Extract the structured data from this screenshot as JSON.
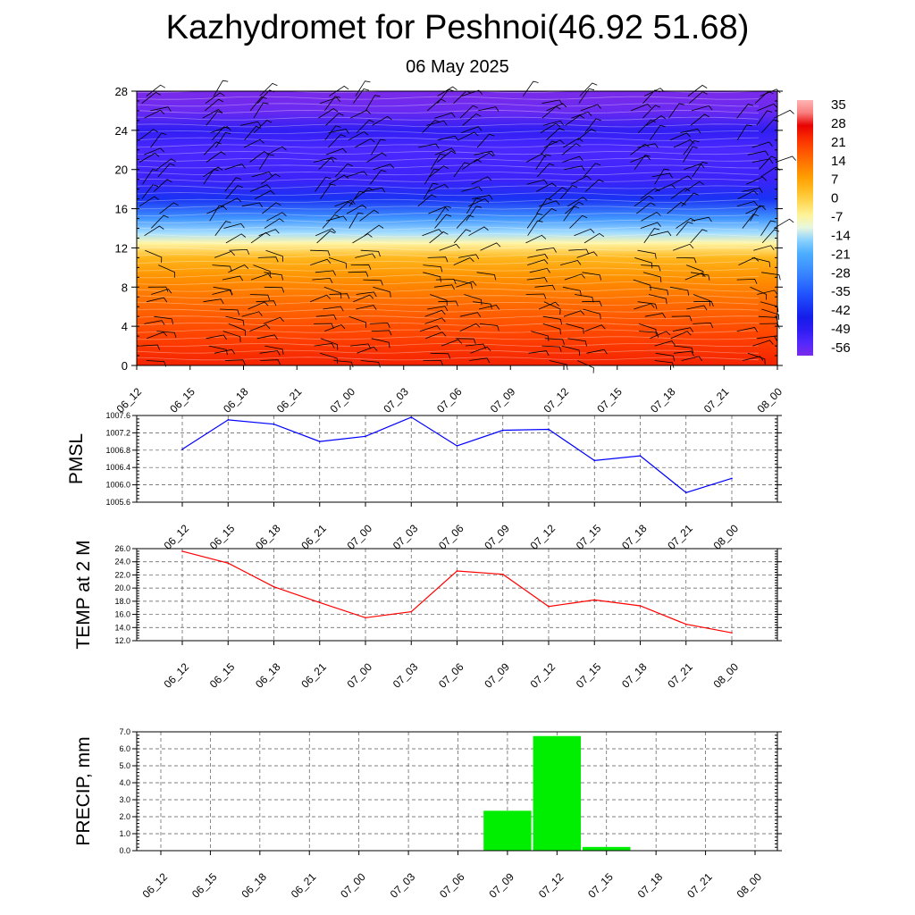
{
  "header": {
    "title": "Kazhydromet for Peshnoi(46.92 51.68)",
    "date": "06 May 2025"
  },
  "colors": {
    "pmsl_line": "#0000ff",
    "temp_line": "#ff0000",
    "precip_bar": "#00ee00",
    "axis": "#000000",
    "grid": "#555555"
  },
  "chart_data": [
    {
      "type": "heatmap",
      "title": "",
      "ylim": [
        0,
        28
      ],
      "yticks": [
        "0",
        "4",
        "8",
        "12",
        "16",
        "20",
        "24",
        "28"
      ],
      "categories": [
        "06_12",
        "06_15",
        "06_18",
        "06_21",
        "07_00",
        "07_03",
        "07_06",
        "07_09",
        "07_12",
        "07_15",
        "07_18",
        "07_21",
        "08_00"
      ],
      "colorbar_labels": [
        "35",
        "28",
        "21",
        "14",
        "7",
        "0",
        "-7",
        "-14",
        "-21",
        "-28",
        "-35",
        "-42",
        "-49",
        "-56"
      ],
      "profile": [
        {
          "level": 0,
          "value": 24
        },
        {
          "level": 3,
          "value": 20
        },
        {
          "level": 6,
          "value": 15
        },
        {
          "level": 9,
          "value": 9
        },
        {
          "level": 11,
          "value": 3
        },
        {
          "level": 12.5,
          "value": -9
        },
        {
          "level": 13.5,
          "value": -16
        },
        {
          "level": 15,
          "value": -28
        },
        {
          "level": 17,
          "value": -45
        },
        {
          "level": 19,
          "value": -56
        },
        {
          "level": 22,
          "value": -58
        },
        {
          "level": 24,
          "value": -54
        },
        {
          "level": 26,
          "value": -62
        },
        {
          "level": 28,
          "value": -64
        }
      ],
      "overlay": "wind barbs"
    },
    {
      "type": "line",
      "ylabel": "PMSL",
      "ylim": [
        1005.6,
        1007.6
      ],
      "yticks": [
        "1005.6",
        "1006.0",
        "1006.4",
        "1006.8",
        "1007.2",
        "1007.6"
      ],
      "categories": [
        "06_12",
        "06_15",
        "06_18",
        "06_21",
        "07_00",
        "07_03",
        "07_06",
        "07_09",
        "07_12",
        "07_15",
        "07_18",
        "07_21",
        "08_00"
      ],
      "values": [
        1006.82,
        1007.5,
        1007.4,
        1007.0,
        1007.12,
        1007.56,
        1006.9,
        1007.26,
        1007.28,
        1006.56,
        1006.67,
        1005.82,
        1006.15
      ]
    },
    {
      "type": "line",
      "ylabel": "TEMP at 2 M",
      "ylim": [
        12.0,
        26.0
      ],
      "yticks": [
        "12.0",
        "14.0",
        "16.0",
        "18.0",
        "20.0",
        "22.0",
        "24.0",
        "26.0"
      ],
      "categories": [
        "06_12",
        "06_15",
        "06_18",
        "06_21",
        "07_00",
        "07_03",
        "07_06",
        "07_09",
        "07_12",
        "07_15",
        "07_18",
        "07_21",
        "08_00"
      ],
      "values": [
        25.6,
        23.8,
        20.2,
        17.8,
        15.5,
        16.4,
        22.6,
        22.1,
        17.2,
        18.2,
        17.3,
        14.5,
        13.2
      ]
    },
    {
      "type": "bar",
      "ylabel": "PRECIP, mm",
      "ylim": [
        0,
        7.0
      ],
      "yticks": [
        "0.0",
        "1.0",
        "2.0",
        "3.0",
        "4.0",
        "5.0",
        "6.0",
        "7.0"
      ],
      "categories": [
        "06_12",
        "06_15",
        "06_18",
        "06_21",
        "07_00",
        "07_03",
        "07_06",
        "07_09",
        "07_12",
        "07_15",
        "07_18",
        "07_21",
        "08_00"
      ],
      "values": [
        0,
        0,
        0,
        0,
        0,
        0,
        0,
        2.35,
        6.75,
        0.22,
        0,
        0,
        0
      ]
    }
  ]
}
